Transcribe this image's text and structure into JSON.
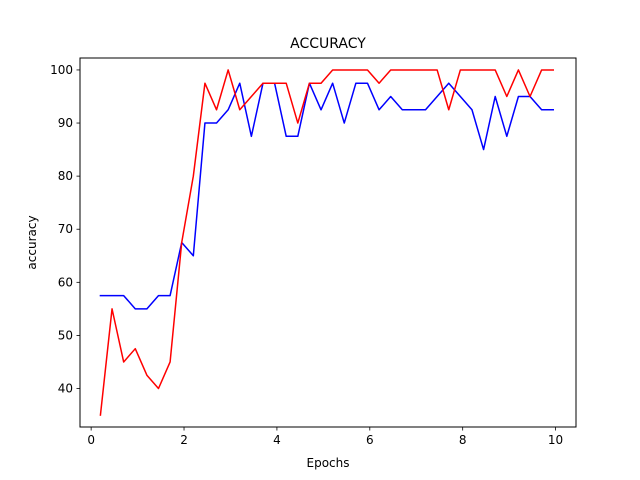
{
  "chart_data": {
    "type": "line",
    "title": "ACCURACY",
    "xlabel": "Epochs",
    "ylabel": "accuracy",
    "xlim": [
      -0.24,
      10.44
    ],
    "ylim": [
      32.75,
      102.25
    ],
    "xticks": [
      0,
      2,
      4,
      6,
      8,
      10
    ],
    "yticks": [
      40,
      50,
      60,
      70,
      80,
      90,
      100
    ],
    "x": [
      0.2,
      0.45,
      0.7,
      0.95,
      1.2,
      1.45,
      1.7,
      1.95,
      2.2,
      2.45,
      2.7,
      2.95,
      3.2,
      3.45,
      3.7,
      3.95,
      4.2,
      4.45,
      4.7,
      4.95,
      5.2,
      5.45,
      5.7,
      5.95,
      6.2,
      6.45,
      6.7,
      6.95,
      7.2,
      7.45,
      7.7,
      7.95,
      8.2,
      8.45,
      8.7,
      8.95,
      9.2,
      9.45,
      9.7,
      9.95
    ],
    "series": [
      {
        "color": "#0000ff",
        "values": [
          57.5,
          57.5,
          57.5,
          55,
          55,
          57.5,
          57.5,
          67.5,
          65,
          90,
          90,
          92.5,
          97.5,
          87.5,
          97.5,
          97.5,
          87.5,
          87.5,
          97.5,
          92.5,
          97.5,
          90,
          97.5,
          97.5,
          92.5,
          95,
          92.5,
          92.5,
          92.5,
          95,
          97.5,
          95,
          92.5,
          85,
          95,
          87.5,
          95,
          95,
          92.5,
          92.5
        ]
      },
      {
        "color": "#ff0000",
        "values": [
          35,
          55,
          45,
          47.5,
          42.5,
          40,
          45,
          67.5,
          80,
          97.5,
          92.5,
          100,
          92.5,
          95,
          97.5,
          97.5,
          97.5,
          90,
          97.5,
          97.5,
          100,
          100,
          100,
          100,
          97.5,
          100,
          100,
          100,
          100,
          100,
          92.5,
          100,
          100,
          100,
          100,
          95,
          100,
          95,
          100,
          100
        ]
      }
    ],
    "grid": false,
    "legend": "none"
  }
}
